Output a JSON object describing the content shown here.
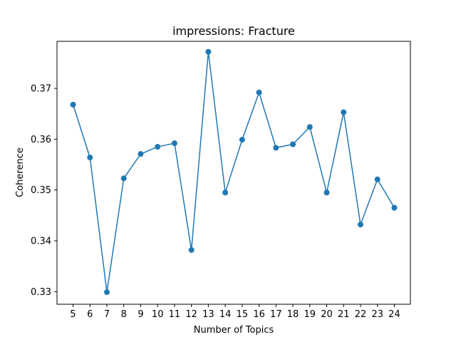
{
  "chart_data": {
    "type": "line",
    "title": "impressions: Fracture",
    "xlabel": "Number of Topics",
    "ylabel": "Coherence",
    "x": [
      5,
      6,
      7,
      8,
      9,
      10,
      11,
      12,
      13,
      14,
      15,
      16,
      17,
      18,
      19,
      20,
      21,
      22,
      23,
      24
    ],
    "series": [
      {
        "values": [
          0.3668,
          0.3564,
          0.3299,
          0.3523,
          0.3571,
          0.3585,
          0.3592,
          0.3382,
          0.3772,
          0.3495,
          0.3599,
          0.3692,
          0.3583,
          0.359,
          0.3624,
          0.3495,
          0.3653,
          0.3432,
          0.3521,
          0.3465
        ],
        "color": "#1f77b4",
        "marker": "circle"
      }
    ],
    "xticks": [
      "5",
      "6",
      "7",
      "8",
      "9",
      "10",
      "11",
      "12",
      "13",
      "14",
      "15",
      "16",
      "17",
      "18",
      "19",
      "20",
      "21",
      "22",
      "23",
      "24"
    ],
    "yticks": [
      0.33,
      0.34,
      0.35,
      0.36,
      0.37
    ],
    "ytick_labels": [
      "0.33",
      "0.34",
      "0.35",
      "0.36",
      "0.37"
    ],
    "xlim": [
      4.05,
      24.95
    ],
    "ylim": [
      0.32752,
      0.37926
    ],
    "grid": false,
    "legend": "none"
  }
}
